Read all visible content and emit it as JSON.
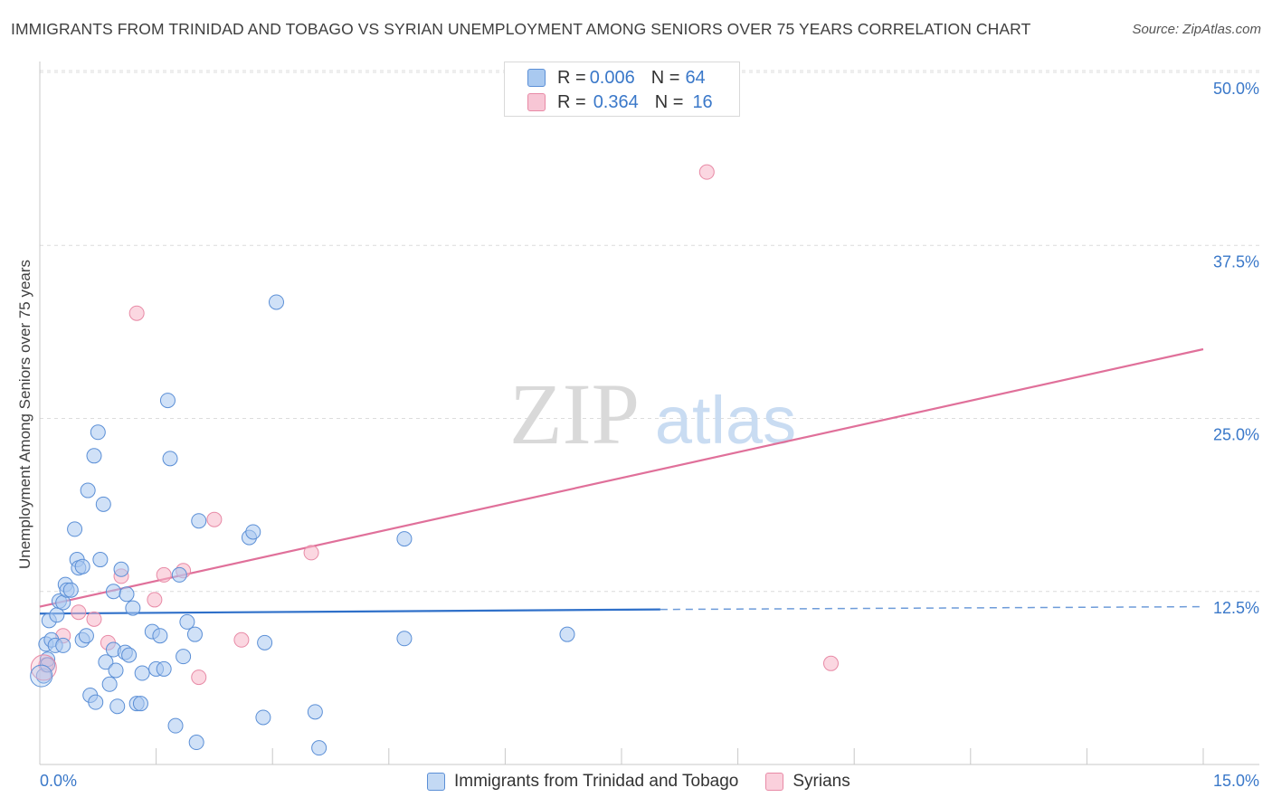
{
  "title": "IMMIGRANTS FROM TRINIDAD AND TOBAGO VS SYRIAN UNEMPLOYMENT AMONG SENIORS OVER 75 YEARS CORRELATION CHART",
  "source": "Source: ZipAtlas.com",
  "watermark": {
    "zip": "ZIP",
    "atlas": "atlas"
  },
  "legend_top": [
    {
      "r_label": "R = ",
      "r_value": "0.006",
      "n_label": "N = ",
      "n_value": "64"
    },
    {
      "r_label": "R = ",
      "r_value": "0.364",
      "n_label": "N = ",
      "n_value": "16"
    }
  ],
  "legend_bottom": [
    {
      "label": "Immigrants from Trinidad and Tobago"
    },
    {
      "label": "Syrians"
    }
  ],
  "colors": {
    "blue_fill": "#a9c9f0",
    "blue_stroke": "#5b8fd6",
    "blue_line": "#2f70c9",
    "pink_fill": "#f7b6c9",
    "pink_stroke": "#e88aa6",
    "pink_line": "#e0709a",
    "grid": "#dcdcdc",
    "axis_text": "#3a78c9"
  },
  "chart_data": {
    "type": "scatter",
    "title": "IMMIGRANTS FROM TRINIDAD AND TOBAGO VS SYRIAN UNEMPLOYMENT AMONG SENIORS OVER 75 YEARS CORRELATION CHART",
    "xlabel": "",
    "ylabel": "Unemployment Among Seniors over 75 years",
    "xlim": [
      0,
      15
    ],
    "ylim": [
      0,
      50
    ],
    "x_tick_labels": [
      "0.0%",
      "15.0%"
    ],
    "y_ticks": [
      12.5,
      25.0,
      37.5,
      50.0
    ],
    "y_tick_labels": [
      "12.5%",
      "25.0%",
      "37.5%",
      "50.0%"
    ],
    "grid": true,
    "legend": "top-center",
    "series": [
      {
        "name": "Immigrants from Trinidad and Tobago",
        "R": 0.006,
        "N": 64,
        "trend": {
          "x0": 0,
          "y0": 10.9,
          "x1": 8.0,
          "y1": 11.2,
          "dashed_to_x": 15,
          "dashed_y1": 11.4
        },
        "points": [
          [
            0.05,
            6.4
          ],
          [
            0.08,
            8.7
          ],
          [
            0.1,
            7.6
          ],
          [
            0.12,
            10.4
          ],
          [
            0.15,
            9.0
          ],
          [
            0.2,
            8.6
          ],
          [
            0.22,
            10.8
          ],
          [
            0.25,
            11.8
          ],
          [
            0.3,
            11.7
          ],
          [
            0.33,
            13.0
          ],
          [
            0.35,
            12.6
          ],
          [
            0.4,
            12.6
          ],
          [
            0.45,
            17.0
          ],
          [
            0.48,
            14.8
          ],
          [
            0.5,
            14.2
          ],
          [
            0.55,
            14.3
          ],
          [
            0.55,
            9.0
          ],
          [
            0.6,
            9.3
          ],
          [
            0.62,
            19.8
          ],
          [
            0.65,
            5.0
          ],
          [
            0.7,
            22.3
          ],
          [
            0.72,
            4.5
          ],
          [
            0.75,
            24.0
          ],
          [
            0.78,
            14.8
          ],
          [
            0.82,
            18.8
          ],
          [
            0.85,
            7.4
          ],
          [
            0.9,
            5.8
          ],
          [
            0.95,
            12.5
          ],
          [
            0.95,
            8.3
          ],
          [
            0.98,
            6.8
          ],
          [
            1.0,
            4.2
          ],
          [
            1.05,
            14.1
          ],
          [
            1.1,
            8.1
          ],
          [
            1.12,
            12.3
          ],
          [
            1.15,
            7.9
          ],
          [
            1.2,
            11.3
          ],
          [
            1.25,
            4.4
          ],
          [
            1.3,
            4.4
          ],
          [
            1.32,
            6.6
          ],
          [
            1.45,
            9.6
          ],
          [
            1.5,
            6.9
          ],
          [
            1.55,
            9.3
          ],
          [
            1.6,
            6.9
          ],
          [
            1.65,
            26.3
          ],
          [
            1.68,
            22.1
          ],
          [
            1.75,
            2.8
          ],
          [
            1.8,
            13.7
          ],
          [
            1.85,
            7.8
          ],
          [
            1.9,
            10.3
          ],
          [
            2.0,
            9.4
          ],
          [
            2.02,
            1.6
          ],
          [
            2.05,
            17.6
          ],
          [
            2.7,
            16.4
          ],
          [
            2.75,
            16.8
          ],
          [
            2.88,
            3.4
          ],
          [
            2.9,
            8.8
          ],
          [
            3.05,
            33.4
          ],
          [
            3.55,
            3.8
          ],
          [
            3.6,
            1.2
          ],
          [
            4.7,
            16.3
          ],
          [
            4.7,
            9.1
          ],
          [
            6.8,
            9.4
          ],
          [
            0.1,
            7.2
          ],
          [
            0.3,
            8.6
          ]
        ]
      },
      {
        "name": "Syrians",
        "R": 0.364,
        "N": 16,
        "trend": {
          "x0": 0,
          "y0": 11.4,
          "x1": 15,
          "y1": 30.0
        },
        "points": [
          [
            0.08,
            7.2
          ],
          [
            0.3,
            9.3
          ],
          [
            0.5,
            11.0
          ],
          [
            0.7,
            10.5
          ],
          [
            0.88,
            8.8
          ],
          [
            1.05,
            13.6
          ],
          [
            1.25,
            32.6
          ],
          [
            1.48,
            11.9
          ],
          [
            1.6,
            13.7
          ],
          [
            1.85,
            14.0
          ],
          [
            2.05,
            6.3
          ],
          [
            2.25,
            17.7
          ],
          [
            2.6,
            9.0
          ],
          [
            3.5,
            15.3
          ],
          [
            8.6,
            42.8
          ],
          [
            10.2,
            7.3
          ]
        ]
      }
    ]
  }
}
